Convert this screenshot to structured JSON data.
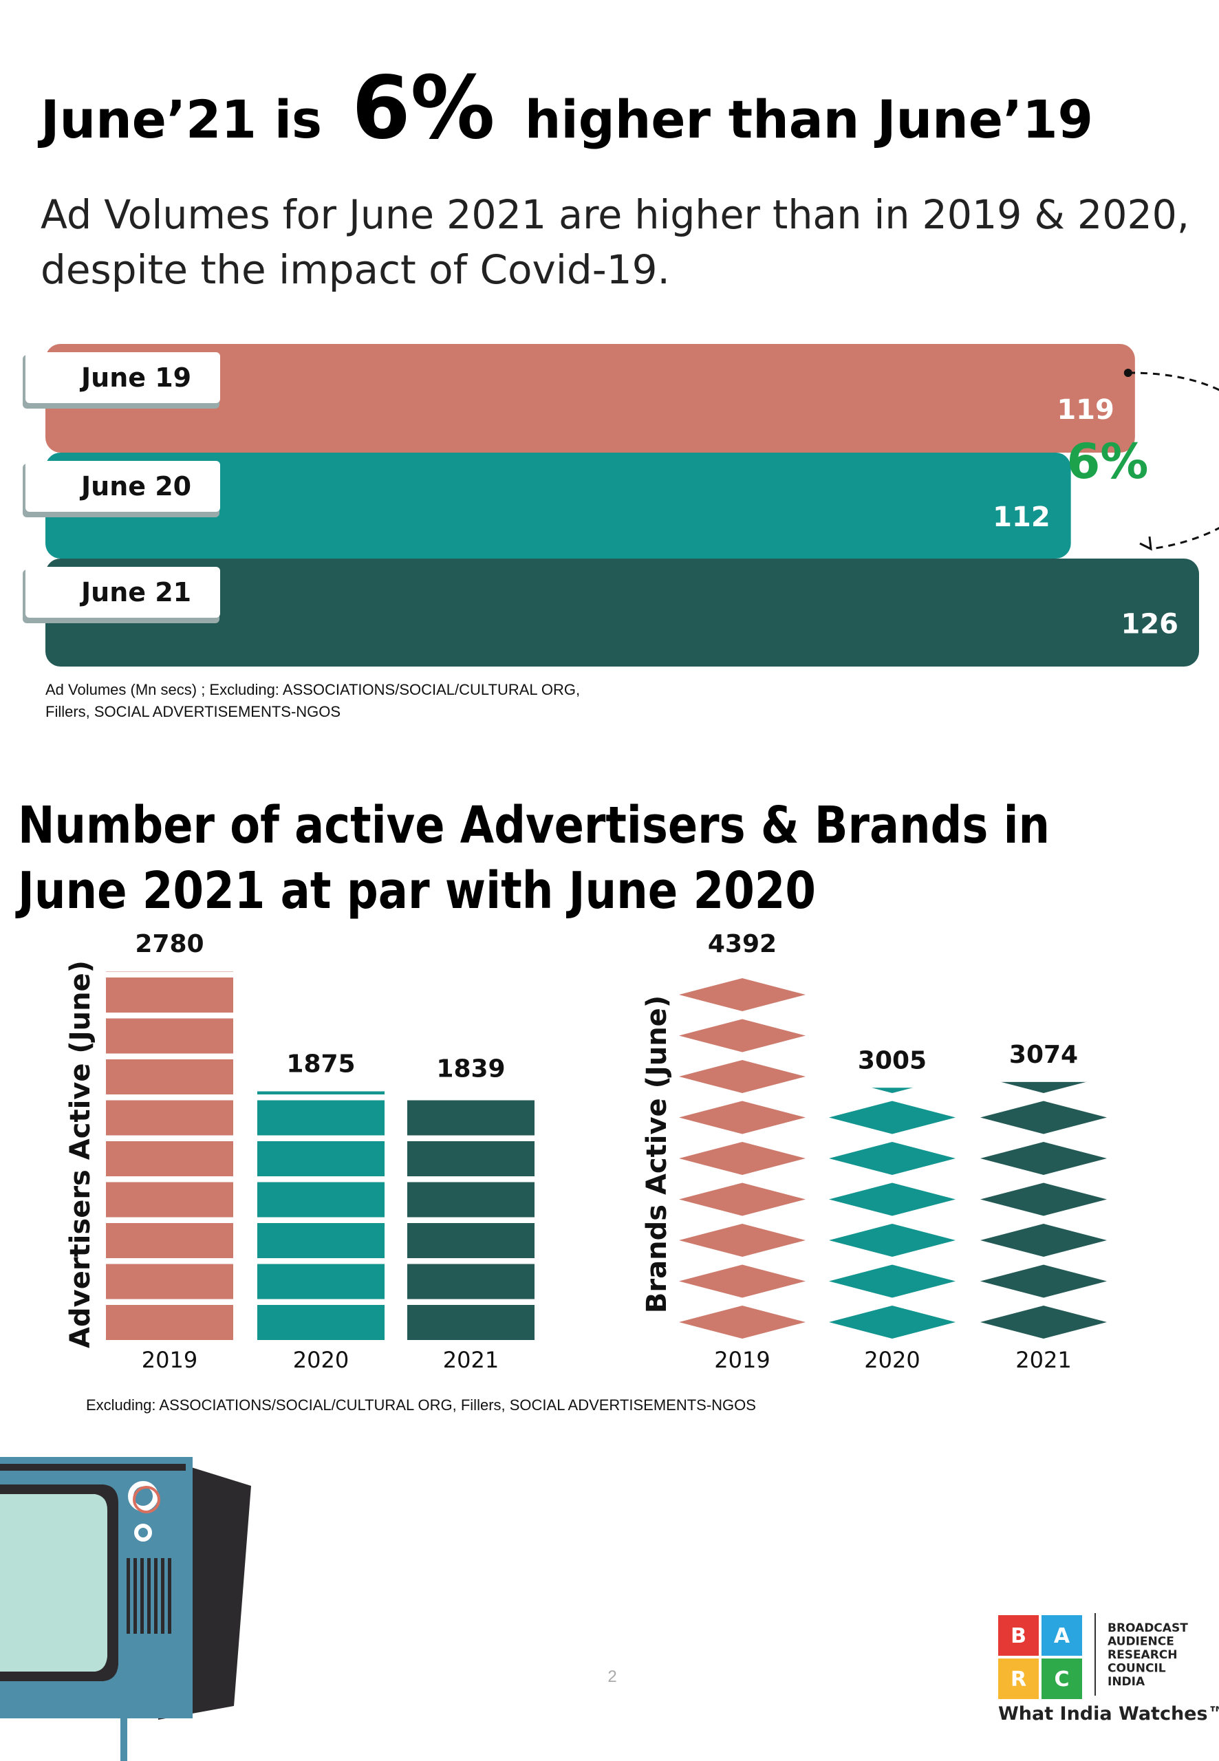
{
  "header": {
    "title_parts": [
      "June’21 is",
      "6%",
      "higher than June’19"
    ],
    "subtitle_lines": [
      "Ad Volumes for June 2021 are higher than in 2019 & 2020,",
      "despite the impact of Covid-19."
    ]
  },
  "section_title_lines": [
    "Number of active Advertisers & Brands in",
    "June 2021 at par with June 2020"
  ],
  "chart_data": [
    {
      "type": "hbar",
      "categories": [
        "June 19",
        "June 20",
        "June 21"
      ],
      "values": [
        119,
        112,
        126
      ],
      "colors": [
        "#cd7a6c",
        "#13958f",
        "#245a56"
      ],
      "annotation": "6%",
      "annotation_color": "#1ba24b",
      "note_lines": [
        "Ad Volumes (Mn secs) ; Excluding: ASSOCIATIONS/SOCIAL/CULTURAL ORG,",
        "Fillers, SOCIAL ADVERTISEMENTS-NGOS"
      ]
    },
    {
      "type": "pictograph",
      "icon": "rect",
      "y_label": "Advertisers Active (June)",
      "categories": [
        "2019",
        "2020",
        "2021"
      ],
      "values": [
        2780,
        1875,
        1839
      ],
      "colors": [
        "#cd7a6c",
        "#13958f",
        "#245a56"
      ]
    },
    {
      "type": "pictograph",
      "icon": "diamond",
      "y_label": "Brands Active (June)",
      "categories": [
        "2019",
        "2020",
        "2021"
      ],
      "values": [
        4392,
        3005,
        3074
      ],
      "colors": [
        "#cd7a6c",
        "#13958f",
        "#245a56"
      ]
    }
  ],
  "footnote": "Excluding: ASSOCIATIONS/SOCIAL/CULTURAL ORG, Fillers, SOCIAL ADVERTISEMENTS-NGOS",
  "page_number": "2",
  "logo": {
    "letters": [
      "B",
      "A",
      "R",
      "C"
    ],
    "name_lines": [
      "BROADCAST",
      "AUDIENCE",
      "RESEARCH",
      "COUNCIL",
      "INDIA"
    ],
    "tagline": "What India Watches™"
  }
}
